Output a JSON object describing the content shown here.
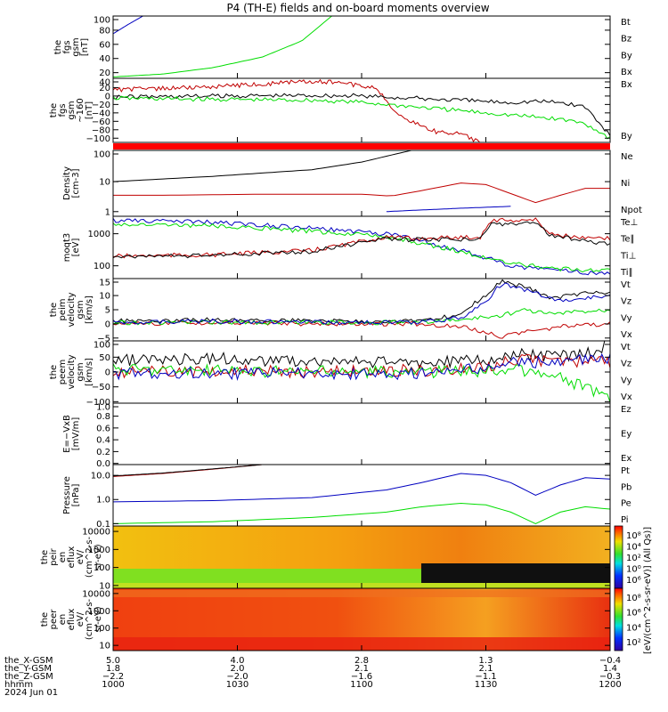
{
  "title": "P4 (TH-E) fields and on-board moments overview",
  "colors": {
    "black": "#000000",
    "red": "#c00000",
    "green": "#00dd00",
    "blue": "#0000c0",
    "bright_red": "#ff0000"
  },
  "chart_data": [
    {
      "id": "fgs",
      "type": "line",
      "ylabel": [
        "the",
        "fgs",
        "gsm",
        "[nT]"
      ],
      "ylim": [
        12,
        100
      ],
      "yticks": [
        "20",
        "40",
        "60",
        "80",
        "100"
      ],
      "legend": [
        {
          "name": "Bt",
          "color": "#000000"
        },
        {
          "name": "Bz",
          "color": "#c00000"
        },
        {
          "name": "By",
          "color": "#00dd00"
        },
        {
          "name": "Bx",
          "color": "#0000c0"
        }
      ],
      "series": [
        {
          "name": "Bx",
          "color": "#0000c0",
          "x": [
            0,
            0.03,
            0.06
          ],
          "y": [
            75,
            88,
            100
          ]
        },
        {
          "name": "By",
          "color": "#00dd00",
          "x": [
            0,
            0.1,
            0.2,
            0.3,
            0.38,
            0.44
          ],
          "y": [
            14,
            18,
            27,
            42,
            65,
            100
          ]
        }
      ]
    },
    {
      "id": "fgs2",
      "type": "line",
      "ylabel": [
        "the",
        "fgs",
        "gsm",
        "~160",
        "[nT]"
      ],
      "ylim": [
        -110,
        42
      ],
      "yticks": [
        "40",
        "20",
        "0",
        "−20",
        "−40",
        "−60",
        "−80",
        "−100"
      ],
      "legend": [
        {
          "name": "Bx",
          "color": "#000000"
        },
        {
          "name": "By",
          "color": "#00dd00"
        }
      ],
      "series": [
        {
          "name": "Bz",
          "color": "#c00000",
          "x": [
            0,
            0.1,
            0.2,
            0.3,
            0.38,
            0.45,
            0.53,
            0.56,
            0.6,
            0.65,
            0.7,
            0.72,
            0.75
          ],
          "y": [
            15,
            18,
            22,
            28,
            35,
            32,
            20,
            -30,
            -60,
            -85,
            -90,
            -100,
            -120
          ]
        },
        {
          "name": "Bx",
          "color": "#000000",
          "x": [
            0,
            0.2,
            0.4,
            0.5,
            0.6,
            0.7,
            0.8,
            0.85,
            0.9,
            0.95,
            1
          ],
          "y": [
            -2,
            0,
            2,
            0,
            -5,
            -10,
            -15,
            -12,
            -15,
            -25,
            -95
          ]
        },
        {
          "name": "By",
          "color": "#00dd00",
          "x": [
            0,
            0.2,
            0.4,
            0.5,
            0.6,
            0.7,
            0.8,
            0.85,
            0.9,
            0.95,
            1
          ],
          "y": [
            -5,
            -8,
            -10,
            -15,
            -25,
            -35,
            -45,
            -50,
            -55,
            -65,
            -100
          ]
        }
      ]
    },
    {
      "id": "density",
      "type": "line",
      "ylabel": [
        "Density",
        "[cm-3]"
      ],
      "yscale": "log",
      "ylim": [
        0.7,
        110
      ],
      "yticks": [
        "1",
        "10",
        "100"
      ],
      "legend": [
        {
          "name": "Ne",
          "color": "#c00000"
        },
        {
          "name": "Ni",
          "color": "#000000"
        },
        {
          "name": "Npot",
          "color": "#0000c0"
        }
      ],
      "series": [
        {
          "name": "Ni",
          "color": "#000000",
          "x": [
            0,
            0.2,
            0.4,
            0.5,
            0.6
          ],
          "y": [
            10,
            15,
            25,
            45,
            110
          ]
        },
        {
          "name": "Ne",
          "color": "#c00000",
          "x": [
            0,
            0.1,
            0.3,
            0.5,
            0.56,
            0.62,
            0.7,
            0.75,
            0.8,
            0.85,
            0.9,
            0.95,
            1
          ],
          "y": [
            3.5,
            3.5,
            3.8,
            3.8,
            3.3,
            5,
            9,
            8,
            4,
            2,
            3.5,
            6,
            6
          ]
        },
        {
          "name": "Npot",
          "color": "#0000c0",
          "x": [
            0.55,
            0.6,
            0.7,
            0.8
          ],
          "y": [
            1.0,
            1.1,
            1.3,
            1.5
          ]
        }
      ]
    },
    {
      "id": "temp",
      "type": "line",
      "ylabel": [
        "moqt3",
        "[eV]"
      ],
      "yscale": "log",
      "ylim": [
        40,
        3500
      ],
      "yticks": [
        "100",
        "1000"
      ],
      "legend": [
        {
          "name": "Te⊥",
          "color": "#c00000"
        },
        {
          "name": "Te∥",
          "color": "#000000"
        },
        {
          "name": "Ti⊥",
          "color": "#00dd00"
        },
        {
          "name": "Ti∥",
          "color": "#00dd00"
        }
      ],
      "series": [
        {
          "name": "Ti⊥",
          "color": "#0000c0",
          "x": [
            0,
            0.2,
            0.4,
            0.55,
            0.62,
            0.7,
            0.75,
            0.8,
            0.9,
            1
          ],
          "y": [
            2600,
            2300,
            1500,
            1000,
            600,
            300,
            180,
            100,
            70,
            55
          ]
        },
        {
          "name": "Ti∥",
          "color": "#00dd00",
          "x": [
            0,
            0.2,
            0.4,
            0.55,
            0.62,
            0.7,
            0.75,
            0.8,
            0.9,
            1
          ],
          "y": [
            2000,
            1800,
            1200,
            800,
            500,
            280,
            170,
            120,
            80,
            70
          ]
        },
        {
          "name": "Te⊥",
          "color": "#c00000",
          "x": [
            0,
            0.2,
            0.4,
            0.55,
            0.6,
            0.74,
            0.76,
            0.85,
            0.88,
            0.95,
            1
          ],
          "y": [
            200,
            220,
            300,
            800,
            700,
            800,
            2600,
            2700,
            1000,
            700,
            700
          ]
        },
        {
          "name": "Te∥",
          "color": "#000000",
          "x": [
            0,
            0.2,
            0.4,
            0.55,
            0.6,
            0.74,
            0.76,
            0.85,
            0.88,
            0.95,
            1
          ],
          "y": [
            200,
            210,
            280,
            700,
            650,
            700,
            2000,
            2100,
            900,
            600,
            500
          ]
        }
      ]
    },
    {
      "id": "peim",
      "type": "line",
      "ylabel": [
        "the",
        "peim",
        "velocity",
        "gsm",
        "[km/s]"
      ],
      "ylim": [
        -6,
        16
      ],
      "yticks": [
        "15",
        "10",
        "5",
        "0",
        "−5"
      ],
      "legend": [
        {
          "name": "Vt",
          "color": "#000000"
        },
        {
          "name": "Vz",
          "color": "#c00000"
        },
        {
          "name": "Vy",
          "color": "#00dd00"
        },
        {
          "name": "Vx",
          "color": "#0000c0"
        }
      ],
      "series": [
        {
          "name": "Vt",
          "color": "#000000",
          "x": [
            0,
            0.2,
            0.4,
            0.6,
            0.65,
            0.7,
            0.75,
            0.78,
            0.83,
            0.88,
            0.95,
            1
          ],
          "y": [
            1,
            1.5,
            1,
            1,
            1.5,
            4,
            10,
            15,
            13,
            9,
            11,
            11
          ]
        },
        {
          "name": "Vz",
          "color": "#c00000",
          "x": [
            0,
            0.2,
            0.4,
            0.6,
            0.7,
            0.75,
            0.78,
            0.83,
            0.9,
            1
          ],
          "y": [
            0,
            0.5,
            0,
            0,
            -1,
            -3,
            -4.5,
            -3,
            -1,
            0
          ]
        },
        {
          "name": "Vy",
          "color": "#00dd00",
          "x": [
            0,
            0.2,
            0.4,
            0.6,
            0.7,
            0.78,
            0.83,
            0.88,
            0.95,
            1
          ],
          "y": [
            0.5,
            0.5,
            0.5,
            0.5,
            1.5,
            3,
            5,
            3.5,
            4.5,
            5
          ]
        },
        {
          "name": "Vx",
          "color": "#0000c0",
          "x": [
            0,
            0.2,
            0.4,
            0.6,
            0.7,
            0.75,
            0.78,
            0.83,
            0.9,
            1
          ],
          "y": [
            0.5,
            1,
            0.5,
            0.5,
            2,
            8,
            14,
            12,
            8,
            10
          ]
        }
      ]
    },
    {
      "id": "peem",
      "type": "line",
      "ylabel": [
        "the",
        "peem",
        "velocity",
        "gsm",
        "[km/s]"
      ],
      "ylim": [
        -105,
        105
      ],
      "yticks": [
        "100",
        "50",
        "0",
        "−50",
        "−100"
      ],
      "legend": [
        {
          "name": "Vt",
          "color": "#000000"
        },
        {
          "name": "Vz",
          "color": "#c00000"
        },
        {
          "name": "Vy",
          "color": "#00dd00"
        },
        {
          "name": "Vx",
          "color": "#0000c0"
        }
      ],
      "series": [
        {
          "name": "Vt",
          "color": "#000000",
          "x": [
            0,
            0.2,
            0.4,
            0.6,
            0.75,
            0.8,
            0.9,
            0.95,
            1
          ],
          "y": [
            40,
            45,
            35,
            30,
            40,
            60,
            55,
            60,
            95
          ]
        },
        {
          "name": "Vz",
          "color": "#c00000",
          "x": [
            0,
            0.2,
            0.4,
            0.6,
            0.75,
            0.8,
            0.9,
            1
          ],
          "y": [
            0,
            5,
            0,
            5,
            10,
            40,
            40,
            30
          ]
        },
        {
          "name": "Vy",
          "color": "#00dd00",
          "x": [
            0,
            0.2,
            0.4,
            0.6,
            0.75,
            0.8,
            0.9,
            0.95,
            1
          ],
          "y": [
            10,
            5,
            0,
            0,
            5,
            10,
            -20,
            -50,
            -100
          ]
        },
        {
          "name": "Vx",
          "color": "#0000c0",
          "x": [
            0,
            0.2,
            0.4,
            0.6,
            0.75,
            0.8,
            0.9,
            1
          ],
          "y": [
            -5,
            -5,
            -3,
            -5,
            15,
            30,
            35,
            50
          ]
        }
      ]
    },
    {
      "id": "efield",
      "type": "line",
      "ylabel": [
        "E=−VxB",
        "[mV/m]"
      ],
      "ylim": [
        -0.02,
        1.02
      ],
      "yticks": [
        "1.0",
        "0.8",
        "0.6",
        "0.4",
        "0.2",
        "0.0"
      ],
      "legend": [
        {
          "name": "Ez",
          "color": "#c00000"
        },
        {
          "name": "Ey",
          "color": "#00dd00"
        },
        {
          "name": "Ex",
          "color": "#0000c0"
        }
      ],
      "series": []
    },
    {
      "id": "pressure",
      "type": "line",
      "ylabel": [
        "Pressure",
        "[nPa]"
      ],
      "yscale": "log",
      "ylim": [
        0.08,
        28
      ],
      "yticks": [
        "10.0",
        "1.0",
        "0.1"
      ],
      "legend": [
        {
          "name": "Pt",
          "color": "#000000"
        },
        {
          "name": "Pb",
          "color": "#c00000"
        },
        {
          "name": "Pe",
          "color": "#00dd00"
        },
        {
          "name": "Pi",
          "color": "#0000c0"
        }
      ],
      "series": [
        {
          "name": "Pb",
          "color": "#c00000",
          "x": [
            0,
            0.1,
            0.2,
            0.3
          ],
          "y": [
            9,
            12,
            18,
            28
          ]
        },
        {
          "name": "Pt",
          "color": "#000000",
          "x": [
            0,
            0.1,
            0.2,
            0.3
          ],
          "y": [
            9.5,
            12.5,
            18.5,
            28
          ]
        },
        {
          "name": "Pi",
          "color": "#0000c0",
          "x": [
            0,
            0.2,
            0.4,
            0.55,
            0.62,
            0.7,
            0.75,
            0.8,
            0.85,
            0.9,
            0.95,
            1
          ],
          "y": [
            0.8,
            0.9,
            1.2,
            2.5,
            5,
            12,
            10,
            5,
            1.5,
            4,
            8,
            7
          ]
        },
        {
          "name": "Pe",
          "color": "#00dd00",
          "x": [
            0,
            0.2,
            0.4,
            0.55,
            0.62,
            0.7,
            0.75,
            0.8,
            0.85,
            0.9,
            0.95,
            1
          ],
          "y": [
            0.1,
            0.12,
            0.18,
            0.3,
            0.5,
            0.7,
            0.6,
            0.3,
            0.1,
            0.3,
            0.5,
            0.4
          ]
        }
      ]
    },
    {
      "id": "peir",
      "type": "heatmap",
      "ylabel": [
        "the",
        "peir",
        "en",
        "eflux",
        "eV/",
        "(cm^2-s-",
        "sr-eV)"
      ],
      "yscale": "log",
      "ylim": [
        7,
        20000
      ],
      "yticks": [
        "10000",
        "1000",
        "100",
        "10"
      ],
      "colorbar": {
        "ticks": [
          "10⁸",
          "10⁴",
          "10²",
          "10⁰",
          "10⁶"
        ]
      }
    },
    {
      "id": "peer",
      "type": "heatmap",
      "ylabel": [
        "the",
        "peer",
        "en",
        "eflux",
        "eV/",
        "(cm^2-s-",
        "sr-eV)"
      ],
      "yscale": "log",
      "ylim": [
        5,
        20000
      ],
      "yticks": [
        "10000",
        "1000",
        "100",
        "10"
      ],
      "colorbar": {
        "ticks": [
          "10⁸",
          "10⁶",
          "10⁴",
          "10²"
        ],
        "label": "[eV/(cm^2-s-sr-eV)] (All Qs)]"
      }
    }
  ],
  "footer": {
    "rows": [
      {
        "label": "the_X-GSM",
        "values": [
          "5.0",
          "4.0",
          "2.8",
          "1.3",
          "−0.4"
        ]
      },
      {
        "label": "the_Y-GSM",
        "values": [
          "1.8",
          "2.0",
          "2.1",
          "2.1",
          "1.4"
        ]
      },
      {
        "label": "the_Z-GSM",
        "values": [
          "−2.2",
          "−2.0",
          "−1.6",
          "−1.1",
          "−0.3"
        ]
      },
      {
        "label": "hhmm",
        "values": [
          "1000",
          "1030",
          "1100",
          "1130",
          "1200"
        ]
      }
    ],
    "date": "2024 Jun 01"
  }
}
